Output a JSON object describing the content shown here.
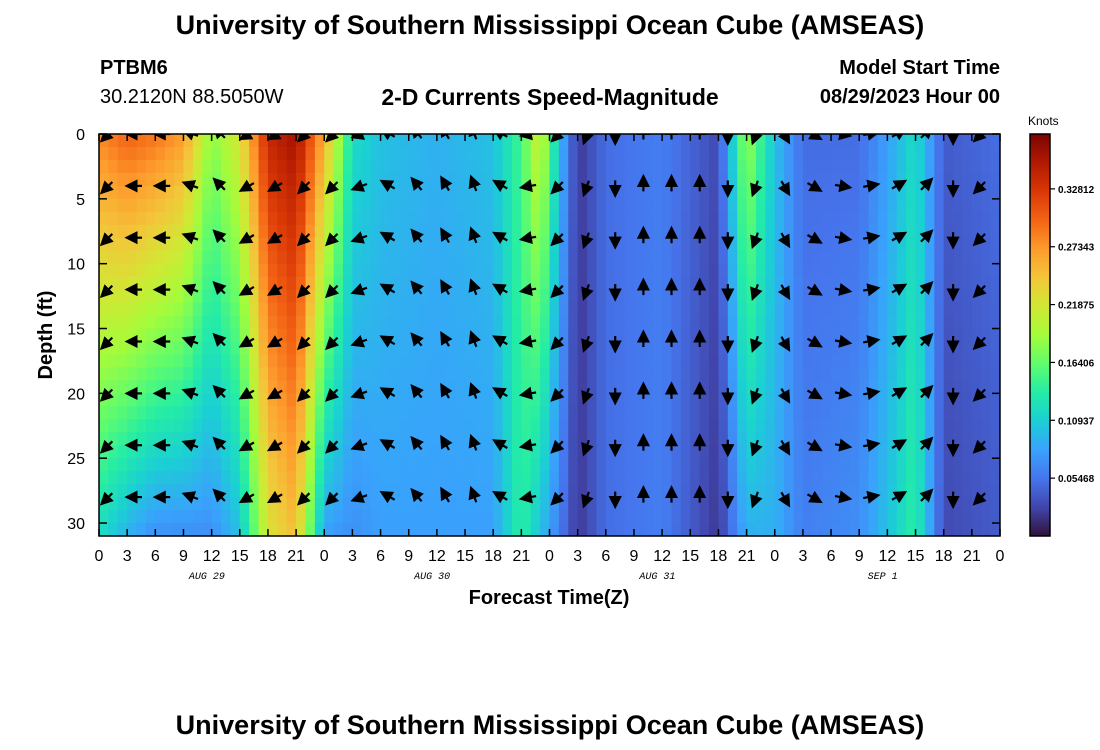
{
  "header": {
    "title": "University of Southern Mississippi Ocean Cube (AMSEAS)",
    "station_id": "PTBM6",
    "station_coords": "30.2120N  88.5050W",
    "plot_title": "2-D Currents Speed-Magnitude",
    "model_start_label": "Model Start Time",
    "model_start_value": "08/29/2023 Hour 00"
  },
  "footer": {
    "title": "University of Southern Mississippi Ocean Cube (AMSEAS)"
  },
  "chart_data": {
    "type": "heatmap",
    "title": "2-D Currents Speed-Magnitude",
    "xlabel": "Forecast Time(Z)",
    "ylabel": "Depth (ft)",
    "x_range_hours": [
      0,
      96
    ],
    "y_range_ft": [
      0,
      31
    ],
    "y_ticks": [
      0,
      5,
      10,
      15,
      20,
      25,
      30
    ],
    "x_tick_labels": [
      "0",
      "3",
      "6",
      "9",
      "12",
      "15",
      "18",
      "21",
      "0",
      "3",
      "6",
      "9",
      "12",
      "15",
      "18",
      "21",
      "0",
      "3",
      "6",
      "9",
      "12",
      "15",
      "18",
      "21",
      "0",
      "3",
      "6",
      "9",
      "12",
      "15",
      "18",
      "21",
      "0"
    ],
    "date_labels": [
      {
        "label": "AUG 29",
        "hour": 11.5
      },
      {
        "label": "AUG 30",
        "hour": 35.5
      },
      {
        "label": "AUG 31",
        "hour": 59.5
      },
      {
        "label": "SEP 1",
        "hour": 83.5
      }
    ],
    "colorbar": {
      "unit_label": "Knots",
      "min": 0,
      "max": 0.38,
      "ticks": [
        "0.05468",
        "0.10937",
        "0.16406",
        "0.21875",
        "0.27343",
        "0.32812"
      ],
      "colors": [
        "#30123b",
        "#4145ab",
        "#4675ed",
        "#39a2fc",
        "#1bcfd4",
        "#24eca6",
        "#61fc6c",
        "#a4fc3b",
        "#d1e834",
        "#f3c63a",
        "#fe9b2d",
        "#f36315",
        "#d93806",
        "#b11901",
        "#7a0403"
      ]
    },
    "speed_profile_by_hour": [
      {
        "hour": 0,
        "surface": 0.28,
        "bottom": 0.12
      },
      {
        "hour": 3,
        "surface": 0.3,
        "bottom": 0.09
      },
      {
        "hour": 6,
        "surface": 0.29,
        "bottom": 0.07
      },
      {
        "hour": 9,
        "surface": 0.27,
        "bottom": 0.07
      },
      {
        "hour": 12,
        "surface": 0.18,
        "bottom": 0.07
      },
      {
        "hour": 15,
        "surface": 0.22,
        "bottom": 0.1
      },
      {
        "hour": 18,
        "surface": 0.34,
        "bottom": 0.22
      },
      {
        "hour": 21,
        "surface": 0.36,
        "bottom": 0.25
      },
      {
        "hour": 24,
        "surface": 0.26,
        "bottom": 0.08
      },
      {
        "hour": 27,
        "surface": 0.12,
        "bottom": 0.07
      },
      {
        "hour": 30,
        "surface": 0.1,
        "bottom": 0.08
      },
      {
        "hour": 36,
        "surface": 0.09,
        "bottom": 0.08
      },
      {
        "hour": 42,
        "surface": 0.1,
        "bottom": 0.08
      },
      {
        "hour": 45,
        "surface": 0.15,
        "bottom": 0.14
      },
      {
        "hour": 47,
        "surface": 0.22,
        "bottom": 0.1
      },
      {
        "hour": 49,
        "surface": 0.1,
        "bottom": 0.06
      },
      {
        "hour": 51,
        "surface": 0.02,
        "bottom": 0.02
      },
      {
        "hour": 54,
        "surface": 0.05,
        "bottom": 0.05
      },
      {
        "hour": 60,
        "surface": 0.06,
        "bottom": 0.06
      },
      {
        "hour": 66,
        "surface": 0.03,
        "bottom": 0.02
      },
      {
        "hour": 69,
        "surface": 0.19,
        "bottom": 0.09
      },
      {
        "hour": 72,
        "surface": 0.1,
        "bottom": 0.09
      },
      {
        "hour": 75,
        "surface": 0.05,
        "bottom": 0.06
      },
      {
        "hour": 81,
        "surface": 0.05,
        "bottom": 0.07
      },
      {
        "hour": 84,
        "surface": 0.08,
        "bottom": 0.1
      },
      {
        "hour": 87,
        "surface": 0.12,
        "bottom": 0.14
      },
      {
        "hour": 90,
        "surface": 0.04,
        "bottom": 0.03
      },
      {
        "hour": 96,
        "surface": 0.05,
        "bottom": 0.04
      }
    ],
    "vector_depths_ft": [
      0,
      4,
      8,
      12,
      16,
      20,
      24,
      28
    ],
    "vector_hours": [
      1,
      4,
      7,
      10,
      13,
      16,
      19,
      22,
      25,
      28,
      31,
      34,
      37,
      40,
      43,
      46,
      49,
      52,
      55,
      58,
      61,
      64,
      67,
      70,
      73,
      76,
      79,
      82,
      85,
      88,
      91,
      94
    ],
    "vector_directions_deg_by_hour": [
      225,
      270,
      270,
      290,
      315,
      240,
      240,
      225,
      225,
      250,
      300,
      320,
      330,
      340,
      300,
      260,
      225,
      200,
      180,
      0,
      0,
      0,
      180,
      200,
      150,
      120,
      100,
      80,
      60,
      45,
      180,
      225
    ]
  }
}
